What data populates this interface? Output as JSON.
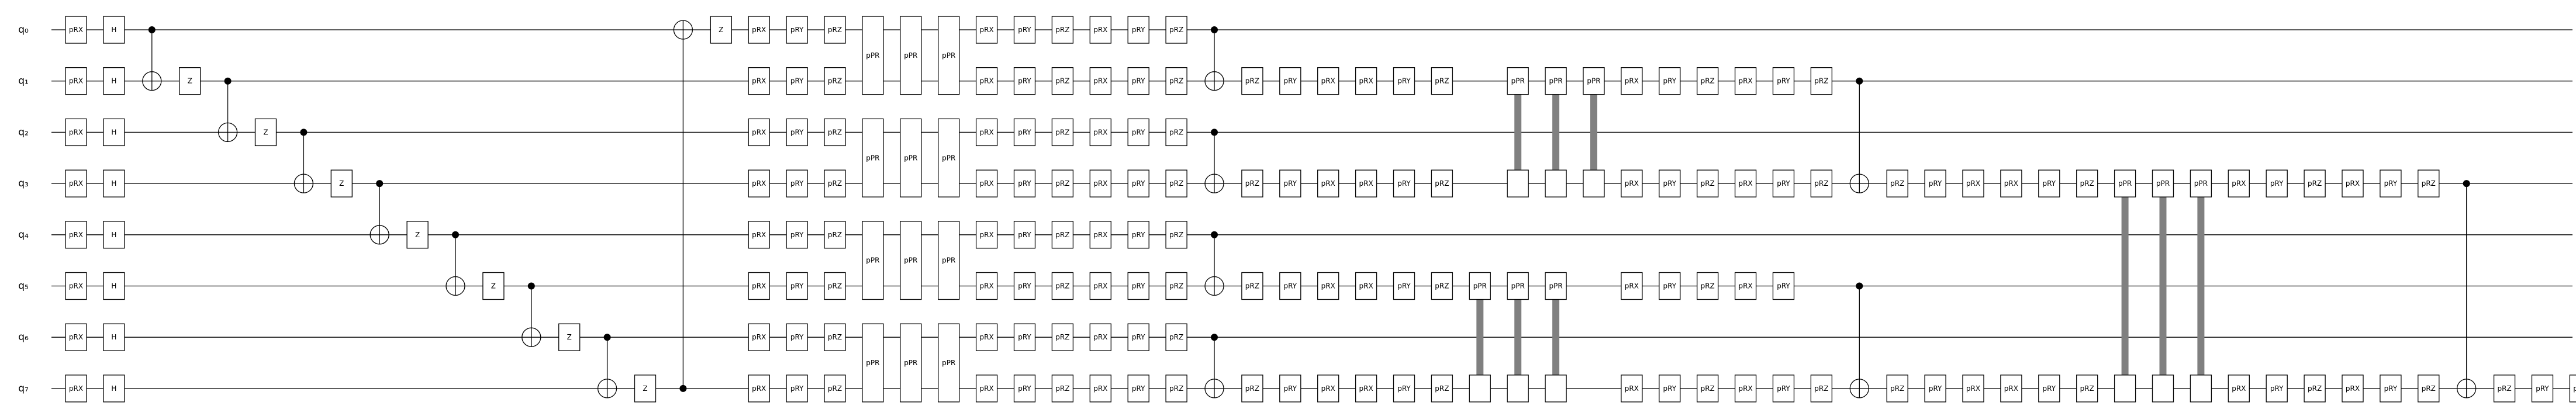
{
  "qubits": [
    "q₀",
    "q₁",
    "q₂",
    "q₃",
    "q₄",
    "q₅",
    "q₆",
    "q₇"
  ],
  "ops": [
    {
      "t": "g",
      "l": "pRX",
      "q": [
        0,
        1,
        2,
        3,
        4,
        5,
        6,
        7
      ]
    },
    {
      "t": "g",
      "l": "H",
      "q": [
        0,
        1,
        2,
        3,
        4,
        5,
        6,
        7
      ]
    },
    {
      "t": "cx",
      "c": 0,
      "x": 1
    },
    {
      "t": "g",
      "l": "Z",
      "q": [
        1
      ]
    },
    {
      "t": "cx",
      "c": 1,
      "x": 2
    },
    {
      "t": "g",
      "l": "Z",
      "q": [
        2
      ]
    },
    {
      "t": "cx",
      "c": 2,
      "x": 3
    },
    {
      "t": "g",
      "l": "Z",
      "q": [
        3
      ]
    },
    {
      "t": "cx",
      "c": 3,
      "x": 4
    },
    {
      "t": "g",
      "l": "Z",
      "q": [
        4
      ]
    },
    {
      "t": "cx",
      "c": 4,
      "x": 5
    },
    {
      "t": "g",
      "l": "Z",
      "q": [
        5
      ]
    },
    {
      "t": "cx",
      "c": 5,
      "x": 6
    },
    {
      "t": "g",
      "l": "Z",
      "q": [
        6
      ]
    },
    {
      "t": "cx",
      "c": 6,
      "x": 7
    },
    {
      "t": "g",
      "l": "Z",
      "q": [
        7
      ]
    },
    {
      "t": "cx",
      "c": 7,
      "x": 0
    },
    {
      "t": "g",
      "l": "Z",
      "q": [
        0
      ]
    },
    {
      "t": "g",
      "l": "pRX",
      "q": [
        0,
        1,
        2,
        3,
        4,
        5,
        6,
        7
      ]
    },
    {
      "t": "g",
      "l": "pRY",
      "q": [
        0,
        1,
        2,
        3,
        4,
        5,
        6,
        7
      ]
    },
    {
      "t": "g",
      "l": "pRZ",
      "q": [
        0,
        1,
        2,
        3,
        4,
        5,
        6,
        7
      ]
    },
    {
      "t": "mg",
      "l": "pPR",
      "q": [
        [
          0,
          1
        ],
        [
          2,
          3
        ],
        [
          4,
          5
        ],
        [
          6,
          7
        ]
      ]
    },
    {
      "t": "mg",
      "l": "pPR",
      "q": [
        [
          0,
          1
        ],
        [
          2,
          3
        ],
        [
          4,
          5
        ],
        [
          6,
          7
        ]
      ]
    },
    {
      "t": "mg",
      "l": "pPR",
      "q": [
        [
          0,
          1
        ],
        [
          2,
          3
        ],
        [
          4,
          5
        ],
        [
          6,
          7
        ]
      ]
    },
    {
      "t": "g",
      "l": "pRX",
      "q": [
        0,
        1,
        2,
        3,
        4,
        5,
        6,
        7
      ]
    },
    {
      "t": "g",
      "l": "pRY",
      "q": [
        0,
        1,
        2,
        3,
        4,
        5,
        6,
        7
      ]
    },
    {
      "t": "g",
      "l": "pRZ",
      "q": [
        0,
        1,
        2,
        3,
        4,
        5,
        6,
        7
      ]
    },
    {
      "t": "g",
      "l": "pRX",
      "q": [
        0,
        1,
        2,
        3,
        4,
        5,
        6,
        7
      ]
    },
    {
      "t": "g",
      "l": "pRY",
      "q": [
        0,
        1,
        2,
        3,
        4,
        5,
        6,
        7
      ]
    },
    {
      "t": "g",
      "l": "pRZ",
      "q": [
        0,
        1,
        2,
        3,
        4,
        5,
        6,
        7
      ]
    },
    {
      "t": "cx2",
      "pairs": [
        [
          0,
          1
        ],
        [
          2,
          3
        ],
        [
          4,
          5
        ],
        [
          6,
          7
        ]
      ]
    },
    {
      "t": "g",
      "l": "pRZ",
      "q": [
        1,
        3,
        5,
        7
      ]
    },
    {
      "t": "g",
      "l": "pRY",
      "q": [
        1,
        3,
        5,
        7
      ]
    },
    {
      "t": "g",
      "l": "pRX",
      "q": [
        1,
        3,
        5,
        7
      ]
    },
    {
      "t": "g",
      "l": "pRX",
      "q": [
        1,
        3,
        5,
        7
      ]
    },
    {
      "t": "g",
      "l": "pRY",
      "q": [
        1,
        3,
        5,
        7
      ]
    },
    {
      "t": "g",
      "l": "pRZ",
      "q": [
        1,
        3,
        5,
        7
      ]
    },
    {
      "t": "pp",
      "l": "pPR",
      "a": [
        5,
        7
      ]
    },
    {
      "t": "pp",
      "l": "pPR",
      "a": [
        1,
        3
      ],
      "b": [
        5,
        7
      ]
    },
    {
      "t": "pp",
      "l": "pPR",
      "a": [
        1,
        3
      ],
      "b": [
        5,
        7
      ]
    },
    {
      "t": "pp",
      "l": "pPR",
      "b": [
        1,
        3
      ]
    },
    {
      "t": "g",
      "l": "pRX",
      "q": [
        1,
        3,
        5,
        7
      ]
    },
    {
      "t": "g",
      "l": "pRY",
      "q": [
        1,
        3,
        5,
        7
      ]
    },
    {
      "t": "g",
      "l": "pRZ",
      "q": [
        1,
        3,
        5,
        7
      ]
    },
    {
      "t": "g",
      "l": "pRX",
      "q": [
        1,
        3,
        5,
        7
      ]
    },
    {
      "t": "g",
      "l": "pRY",
      "q": [
        1,
        3,
        5,
        7
      ]
    },
    {
      "t": "g",
      "l": "pRZ",
      "q": [
        1,
        3,
        7
      ]
    },
    {
      "t": "cx2",
      "pairs": [
        [
          1,
          3
        ],
        [
          5,
          7
        ]
      ]
    },
    {
      "t": "g",
      "l": "pRZ",
      "q": [
        3,
        7
      ]
    },
    {
      "t": "g",
      "l": "pRY",
      "q": [
        3,
        7
      ]
    },
    {
      "t": "g",
      "l": "pRX",
      "q": [
        3,
        7
      ]
    },
    {
      "t": "g",
      "l": "pRX",
      "q": [
        3,
        7
      ]
    },
    {
      "t": "g",
      "l": "pRY",
      "q": [
        3,
        7
      ]
    },
    {
      "t": "g",
      "l": "pRZ",
      "q": [
        3,
        7
      ]
    },
    {
      "t": "pp",
      "l": "pPR",
      "a": [
        3,
        7
      ]
    },
    {
      "t": "pp",
      "l": "pPR",
      "a": [
        3,
        7
      ]
    },
    {
      "t": "pp",
      "l": "pPR",
      "a": [
        3,
        7
      ]
    },
    {
      "t": "g",
      "l": "pRX",
      "q": [
        3,
        7
      ]
    },
    {
      "t": "g",
      "l": "pRY",
      "q": [
        3,
        7
      ]
    },
    {
      "t": "g",
      "l": "pRZ",
      "q": [
        3,
        7
      ]
    },
    {
      "t": "g",
      "l": "pRX",
      "q": [
        3,
        7
      ]
    },
    {
      "t": "g",
      "l": "pRY",
      "q": [
        3,
        7
      ]
    },
    {
      "t": "g",
      "l": "pRZ",
      "q": [
        3,
        7
      ]
    },
    {
      "t": "cx",
      "c": 3,
      "x": 7
    },
    {
      "t": "g",
      "l": "pRZ",
      "q": [
        7
      ]
    },
    {
      "t": "g",
      "l": "pRY",
      "q": [
        7
      ]
    },
    {
      "t": "g",
      "l": "pRX",
      "q": [
        7
      ]
    }
  ]
}
